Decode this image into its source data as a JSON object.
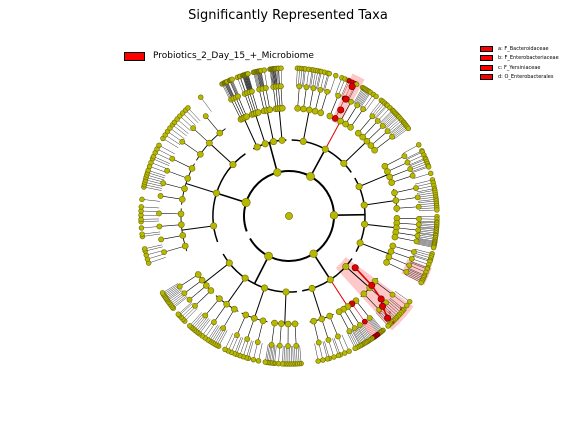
{
  "title": "Significantly Represented Taxa",
  "legend": {
    "label": "Probiotics_2_Day_15_+_Microbiome",
    "color": "#ff0000"
  },
  "clades": [
    {
      "letter": "a",
      "label": "a: F_Bacteroidaceae"
    },
    {
      "letter": "b",
      "label": "b: F_Enterobacteriaceae"
    },
    {
      "letter": "c",
      "label": "c: F_Yersiniaceae"
    },
    {
      "letter": "d",
      "label": "d: O_Enterobacterales"
    }
  ],
  "colors": {
    "node": "#b8b800",
    "node_edge": "#6b6b00",
    "highlight_node": "#e00000",
    "highlight_band": "#ff9a9a",
    "edge": "#000000"
  }
}
